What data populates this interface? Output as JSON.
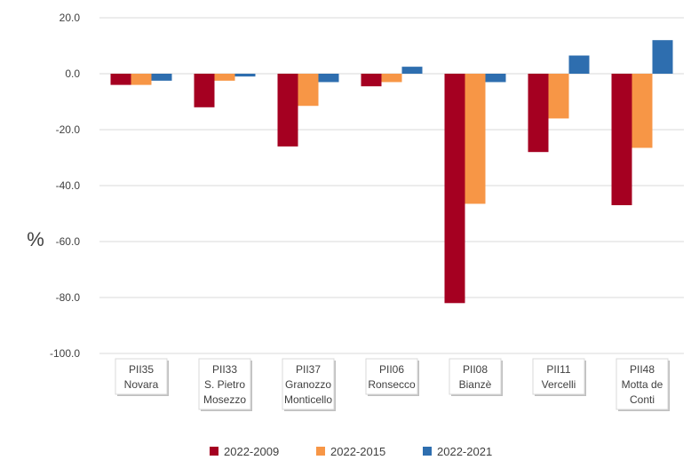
{
  "chart_data": {
    "type": "bar",
    "ylabel": "%",
    "ylim": [
      -100,
      20
    ],
    "yticks": [
      "20.0",
      "0.0",
      "-20.0",
      "-40.0",
      "-60.0",
      "-80.0",
      "-100.0"
    ],
    "ytick_values": [
      20,
      0,
      -20,
      -40,
      -60,
      -80,
      -100
    ],
    "categories": [
      {
        "code": "PII35",
        "name": "Novara"
      },
      {
        "code": "PII33",
        "name": "S. Pietro Mosezzo"
      },
      {
        "code": "PII37",
        "name": "Granozzo Monticello"
      },
      {
        "code": "PII06",
        "name": "Ronsecco"
      },
      {
        "code": "PII08",
        "name": "Bianzè"
      },
      {
        "code": "PII11",
        "name": "Vercelli"
      },
      {
        "code": "PII48",
        "name": "Motta de Conti"
      }
    ],
    "series": [
      {
        "name": "2022-2009",
        "color": "#A50021",
        "values": [
          -4,
          -12,
          -26,
          -4.5,
          -82,
          -28,
          -47
        ]
      },
      {
        "name": "2022-2015",
        "color": "#F79646",
        "values": [
          -4,
          -2.5,
          -11.5,
          -3,
          -46.5,
          -16,
          -26.5
        ]
      },
      {
        "name": "2022-2021",
        "color": "#2E6EAF",
        "values": [
          -2.5,
          -1,
          -3,
          2.5,
          -3,
          6.5,
          12
        ]
      }
    ],
    "grid": true,
    "legend_position": "bottom"
  }
}
